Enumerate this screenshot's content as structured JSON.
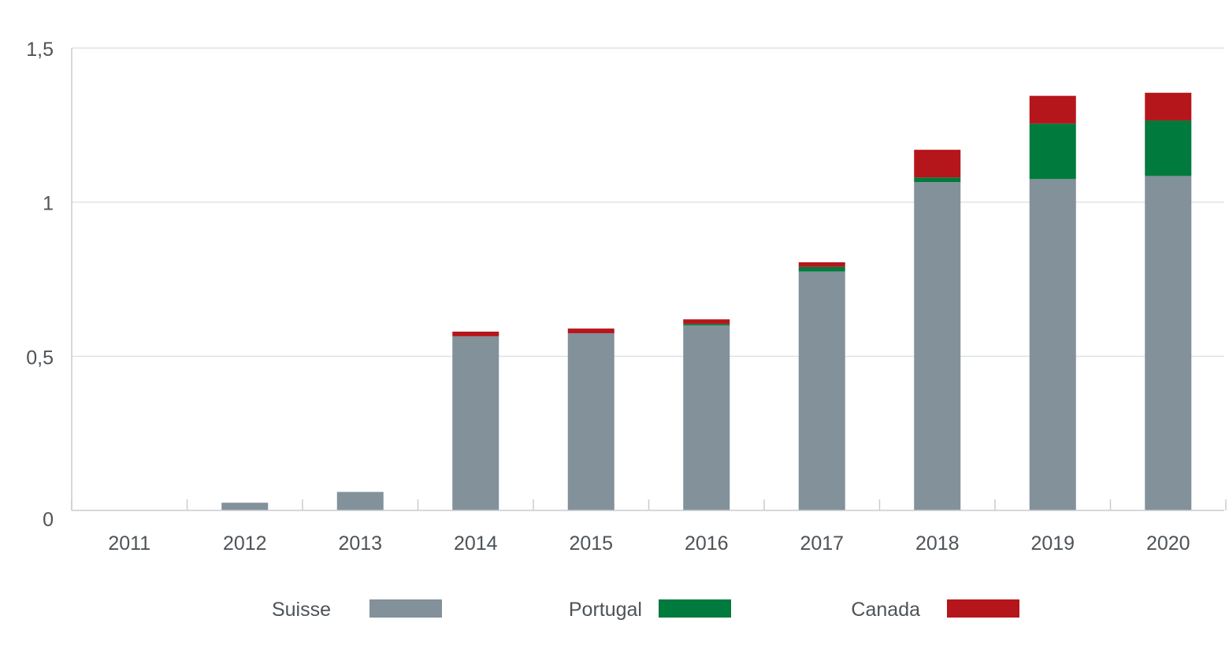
{
  "chart_data": {
    "type": "bar",
    "stacked": true,
    "title": "",
    "xlabel": "",
    "ylabel": "",
    "categories": [
      "2011",
      "2012",
      "2013",
      "2014",
      "2015",
      "2016",
      "2017",
      "2018",
      "2019",
      "2020"
    ],
    "series": [
      {
        "name": "Suisse",
        "color": "#82919a",
        "values": [
          0,
          0.025,
          0.06,
          0.565,
          0.575,
          0.6,
          0.775,
          1.065,
          1.075,
          1.085
        ]
      },
      {
        "name": "Portugal",
        "color": "#007a3d",
        "values": [
          0,
          0,
          0,
          0,
          0,
          0.005,
          0.015,
          0.015,
          0.18,
          0.18
        ]
      },
      {
        "name": "Canada",
        "color": "#b5161b",
        "values": [
          0,
          0,
          0,
          0.015,
          0.015,
          0.015,
          0.015,
          0.09,
          0.09,
          0.09
        ]
      }
    ],
    "ylim": [
      0,
      1.5
    ],
    "yticks": [
      {
        "value": 0,
        "label": "0"
      },
      {
        "value": 0.5,
        "label": "0,5"
      },
      {
        "value": 1,
        "label": "1"
      },
      {
        "value": 1.5,
        "label": "1,5"
      }
    ],
    "grid": true,
    "legend_position": "bottom"
  }
}
